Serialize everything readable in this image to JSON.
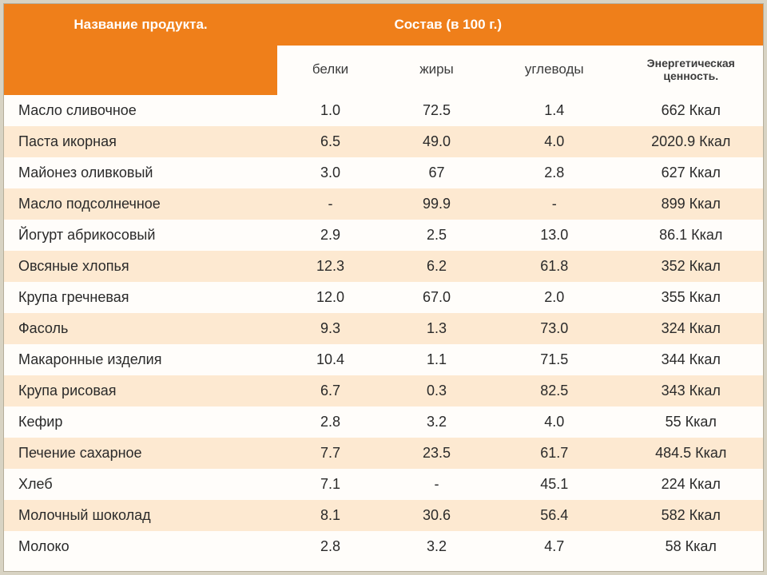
{
  "colors": {
    "header_bg": "#ef7f1a",
    "header_text": "#ffffff",
    "page_bg": "#d8d3c3",
    "table_bg": "#fffdfa",
    "stripe_bg": "#fde9d1",
    "text": "#2a2a2a",
    "border": "#b5ae9a"
  },
  "typography": {
    "header_fontsize": 17,
    "cell_fontsize": 18,
    "energy_header_fontsize": 14
  },
  "table": {
    "type": "table",
    "header_main_name": "Название продукта.",
    "header_main_comp": "Состав (в 100 г.)",
    "sub_headers": {
      "protein": "белки",
      "fat": "жиры",
      "carbs": "углеводы",
      "energy": "Энергетическая ценность."
    },
    "col_widths_pct": [
      36,
      14,
      14,
      17,
      19
    ],
    "rows": [
      {
        "name": "Масло сливочное",
        "protein": "1.0",
        "fat": "72.5",
        "carbs": "1.4",
        "energy": "662 Ккал"
      },
      {
        "name": "Паста икорная",
        "protein": "6.5",
        "fat": "49.0",
        "carbs": "4.0",
        "energy": "2020.9 Ккал"
      },
      {
        "name": "Майонез оливковый",
        "protein": "3.0",
        "fat": "67",
        "carbs": "2.8",
        "energy": "627 Ккал"
      },
      {
        "name": "Масло подсолнечное",
        "protein": "-",
        "fat": "99.9",
        "carbs": "-",
        "energy": "899 Ккал"
      },
      {
        "name": "Йогурт абрикосовый",
        "protein": "2.9",
        "fat": "2.5",
        "carbs": "13.0",
        "energy": "86.1 Ккал"
      },
      {
        "name": "Овсяные хлопья",
        "protein": "12.3",
        "fat": "6.2",
        "carbs": "61.8",
        "energy": "352 Ккал"
      },
      {
        "name": "Крупа гречневая",
        "protein": "12.0",
        "fat": "67.0",
        "carbs": "2.0",
        "energy": "355 Ккал"
      },
      {
        "name": "Фасоль",
        "protein": "9.3",
        "fat": "1.3",
        "carbs": "73.0",
        "energy": "324 Ккал"
      },
      {
        "name": "Макаронные изделия",
        "protein": "10.4",
        "fat": "1.1",
        "carbs": "71.5",
        "energy": "344 Ккал"
      },
      {
        "name": "Крупа рисовая",
        "protein": "6.7",
        "fat": "0.3",
        "carbs": "82.5",
        "energy": "343 Ккал"
      },
      {
        "name": "Кефир",
        "protein": "2.8",
        "fat": "3.2",
        "carbs": "4.0",
        "energy": "55 Ккал"
      },
      {
        "name": "Печение сахарное",
        "protein": "7.7",
        "fat": "23.5",
        "carbs": "61.7",
        "energy": "484.5 Ккал"
      },
      {
        "name": "Хлеб",
        "protein": "7.1",
        "fat": "-",
        "carbs": "45.1",
        "energy": "224 Ккал"
      },
      {
        "name": "Молочный шоколад",
        "protein": "8.1",
        "fat": "30.6",
        "carbs": "56.4",
        "energy": "582 Ккал"
      },
      {
        "name": "Молоко",
        "protein": "2.8",
        "fat": "3.2",
        "carbs": "4.7",
        "energy": "58 Ккал"
      }
    ]
  }
}
